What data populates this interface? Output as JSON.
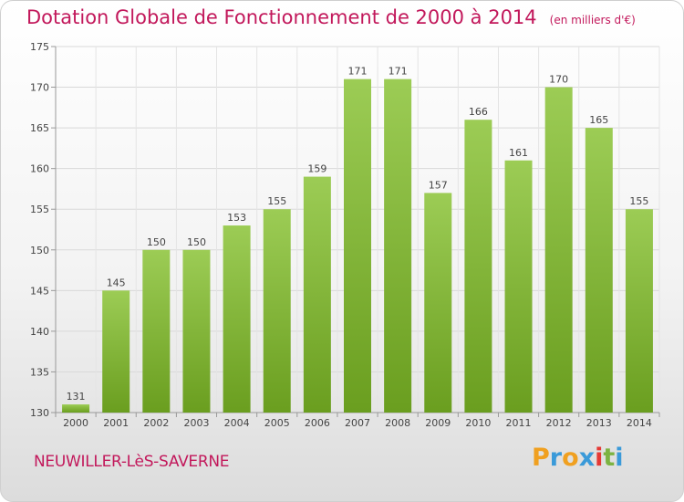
{
  "title": "Dotation Globale de Fonctionnement de 2000 à 2014",
  "subtitle": "(en milliers d'€)",
  "location": "NEUWILLER-LèS-SAVERNE",
  "logo": {
    "text": "Proxiti",
    "letters": [
      "P",
      "r",
      "o",
      "x",
      "i",
      "t",
      "i"
    ]
  },
  "colors": {
    "title": "#c2185b",
    "bar_top": "#9ccc55",
    "bar_bottom": "#6a9e1f"
  },
  "chart_data": {
    "type": "bar",
    "title": "Dotation Globale de Fonctionnement de 2000 à 2014",
    "categories": [
      "2000",
      "2001",
      "2002",
      "2003",
      "2004",
      "2005",
      "2006",
      "2007",
      "2008",
      "2009",
      "2010",
      "2011",
      "2012",
      "2013",
      "2014"
    ],
    "values": [
      131,
      145,
      150,
      150,
      153,
      155,
      159,
      171,
      171,
      157,
      166,
      161,
      170,
      165,
      155
    ],
    "ylim": [
      130,
      175
    ],
    "yticks": [
      130,
      135,
      140,
      145,
      150,
      155,
      160,
      165,
      170,
      175
    ],
    "grid": true,
    "data_labels": true
  }
}
